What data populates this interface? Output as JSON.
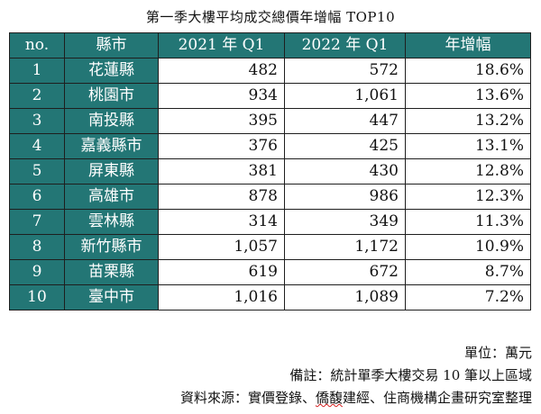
{
  "title": "第一季大樓平均成交總價年增幅 TOP10",
  "columns": [
    "no.",
    "縣市",
    "2021 年 Q1",
    "2022 年 Q1",
    "年增幅"
  ],
  "rows": [
    {
      "no": "1",
      "county": "花蓮縣",
      "q1_2021": "482",
      "q1_2022": "572",
      "growth": "18.6%"
    },
    {
      "no": "2",
      "county": "桃園市",
      "q1_2021": "934",
      "q1_2022": "1,061",
      "growth": "13.6%"
    },
    {
      "no": "3",
      "county": "南投縣",
      "q1_2021": "395",
      "q1_2022": "447",
      "growth": "13.2%"
    },
    {
      "no": "4",
      "county": "嘉義縣市",
      "q1_2021": "376",
      "q1_2022": "425",
      "growth": "13.1%"
    },
    {
      "no": "5",
      "county": "屏東縣",
      "q1_2021": "381",
      "q1_2022": "430",
      "growth": "12.8%"
    },
    {
      "no": "6",
      "county": "高雄市",
      "q1_2021": "878",
      "q1_2022": "986",
      "growth": "12.3%"
    },
    {
      "no": "7",
      "county": "雲林縣",
      "q1_2021": "314",
      "q1_2022": "349",
      "growth": "11.3%"
    },
    {
      "no": "8",
      "county": "新竹縣市",
      "q1_2021": "1,057",
      "q1_2022": "1,172",
      "growth": "10.9%"
    },
    {
      "no": "9",
      "county": "苗栗縣",
      "q1_2021": "619",
      "q1_2022": "672",
      "growth": "8.7%"
    },
    {
      "no": "10",
      "county": "臺中市",
      "q1_2021": "1,016",
      "q1_2022": "1,089",
      "growth": "7.2%"
    }
  ],
  "notes": {
    "unit": "單位：萬元",
    "remark": "備註：統計單季大樓交易 10 筆以上區域",
    "source_prefix": "資料來源：實價登錄、",
    "source_squiggle": "僑馥",
    "source_suffix": "建經、住商機構企畫研究室整理"
  },
  "colors": {
    "header_bg": "#237675",
    "header_text": "#ffffff",
    "border": "#1e1e1e"
  }
}
